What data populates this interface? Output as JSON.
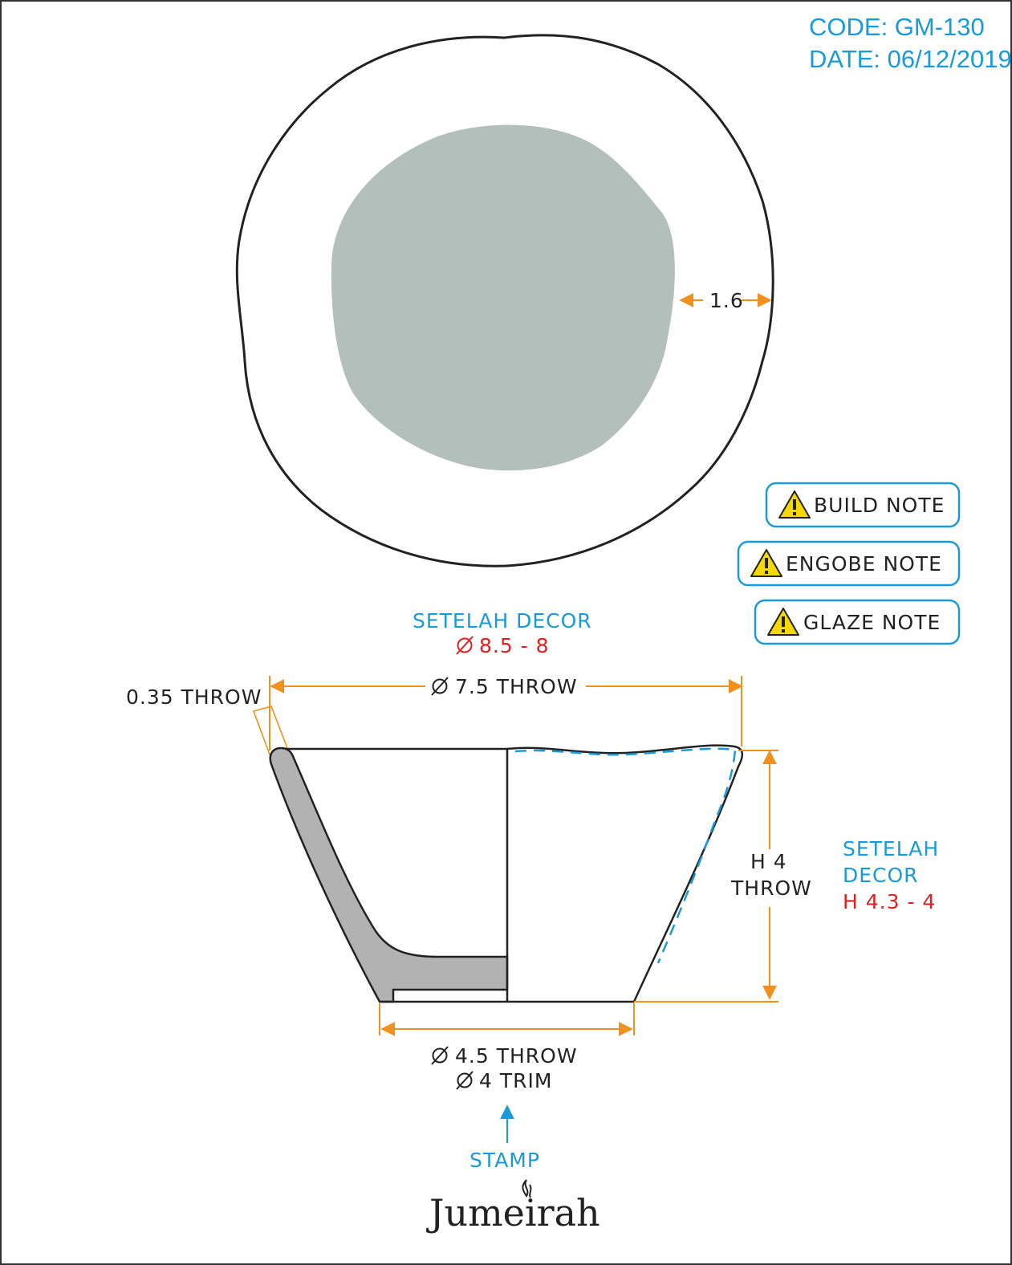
{
  "header": {
    "code": "CODE: GM-130",
    "date": "DATE: 06/12/2019"
  },
  "top_view": {
    "rim_width_label": "1.6"
  },
  "notes": [
    {
      "label": "BUILD NOTE",
      "icon": "warning-icon"
    },
    {
      "label": "ENGOBE NOTE",
      "icon": "warning-icon"
    },
    {
      "label": "GLAZE NOTE",
      "icon": "warning-icon"
    }
  ],
  "side_view": {
    "decor_title": "SETELAH DECOR",
    "decor_diameter": "8.5 - 8",
    "throw_diameter": "7.5 THROW",
    "wall_thickness": "0.35 THROW",
    "height_line1": "H 4",
    "height_line2": "THROW",
    "decor_height_title_1": "SETELAH",
    "decor_height_title_2": "DECOR",
    "decor_height": "H 4.3 - 4",
    "foot_throw": "4.5 THROW",
    "foot_trim": "4 TRIM",
    "stamp_label": "STAMP"
  },
  "brand": {
    "logo_text": "Jumeirah"
  },
  "colors": {
    "blue": "#1a9ad6",
    "red": "#e02020",
    "orange": "#f0901e",
    "glaze": "#b3bfbb",
    "section": "#b2b2b2",
    "note_border": "#1a9ad6",
    "warning": "#f5d800"
  }
}
